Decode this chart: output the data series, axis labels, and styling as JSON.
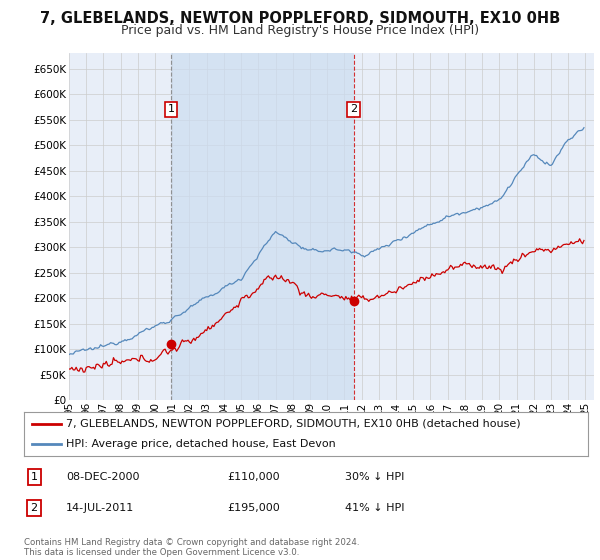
{
  "title": "7, GLEBELANDS, NEWTON POPPLEFORD, SIDMOUTH, EX10 0HB",
  "subtitle": "Price paid vs. HM Land Registry's House Price Index (HPI)",
  "ylim": [
    0,
    680000
  ],
  "yticks": [
    0,
    50000,
    100000,
    150000,
    200000,
    250000,
    300000,
    350000,
    400000,
    450000,
    500000,
    550000,
    600000,
    650000
  ],
  "xlim_start": 1995.0,
  "xlim_end": 2025.5,
  "grid_color": "#cccccc",
  "background_color": "#ffffff",
  "plot_bg_color": "#e8eef8",
  "shade_color": "#dce8f5",
  "red_line_color": "#cc0000",
  "blue_line_color": "#5588bb",
  "sale1_year": 2000.92,
  "sale1_price": 110000,
  "sale2_year": 2011.54,
  "sale2_price": 195000,
  "legend_red": "7, GLEBELANDS, NEWTON POPPLEFORD, SIDMOUTH, EX10 0HB (detached house)",
  "legend_blue": "HPI: Average price, detached house, East Devon",
  "table_rows": [
    {
      "num": "1",
      "date": "08-DEC-2000",
      "price": "£110,000",
      "hpi": "30% ↓ HPI"
    },
    {
      "num": "2",
      "date": "14-JUL-2011",
      "price": "£195,000",
      "hpi": "41% ↓ HPI"
    }
  ],
  "footer": "Contains HM Land Registry data © Crown copyright and database right 2024.\nThis data is licensed under the Open Government Licence v3.0.",
  "title_fontsize": 10.5,
  "subtitle_fontsize": 9,
  "tick_fontsize": 7.5,
  "legend_fontsize": 8
}
